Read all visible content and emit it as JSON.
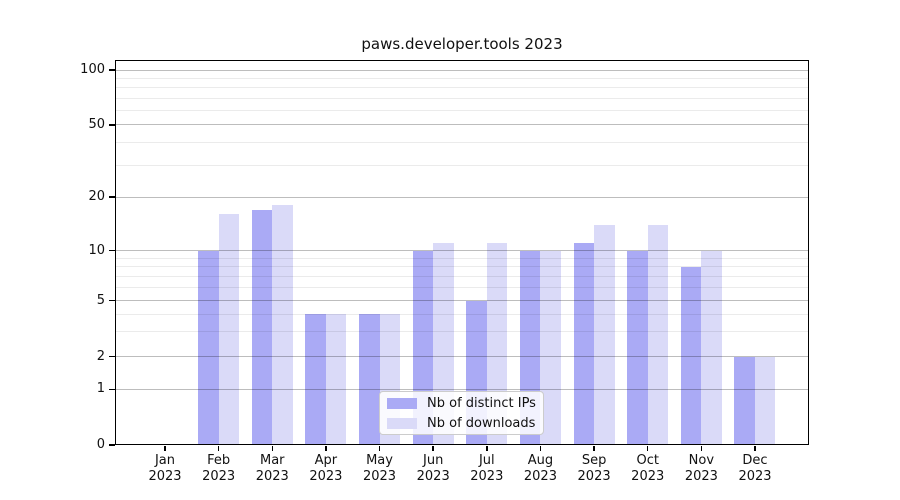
{
  "chart_data": {
    "type": "bar",
    "title": "paws.developer.tools 2023",
    "categories": [
      "Jan 2023",
      "Feb 2023",
      "Mar 2023",
      "Apr 2023",
      "May 2023",
      "Jun 2023",
      "Jul 2023",
      "Aug 2023",
      "Sep 2023",
      "Oct 2023",
      "Nov 2023",
      "Dec 2023"
    ],
    "x_tick_months": [
      "Jan",
      "Feb",
      "Mar",
      "Apr",
      "May",
      "Jun",
      "Jul",
      "Aug",
      "Sep",
      "Oct",
      "Nov",
      "Dec"
    ],
    "x_tick_year": "2023",
    "series": [
      {
        "name": "Nb of distinct IPs",
        "color": "#aaaaf5",
        "values": [
          0,
          10,
          17,
          4,
          4,
          10,
          5,
          10,
          11,
          10,
          8,
          2
        ]
      },
      {
        "name": "Nb of downloads",
        "color": "#dadaf8",
        "values": [
          0,
          16,
          18,
          4,
          4,
          11,
          11,
          10,
          14,
          14,
          10,
          2
        ]
      }
    ],
    "y_axis": {
      "scale": "symlog",
      "tick_labels": [
        100,
        50,
        20,
        10,
        5,
        2,
        1,
        0
      ],
      "minor_ticks": [
        3,
        4,
        6,
        7,
        8,
        9,
        30,
        40,
        60,
        70,
        80,
        90
      ],
      "ylim": [
        0,
        115
      ]
    },
    "grid": true,
    "legend_position": "lower center"
  },
  "colors": {
    "bar_distinct_ips": "#aaaaf5",
    "bar_downloads": "#dadaf8",
    "spine": "#000000",
    "grid_major": "#bdbdbd",
    "grid_minor": "#ebebeb"
  }
}
